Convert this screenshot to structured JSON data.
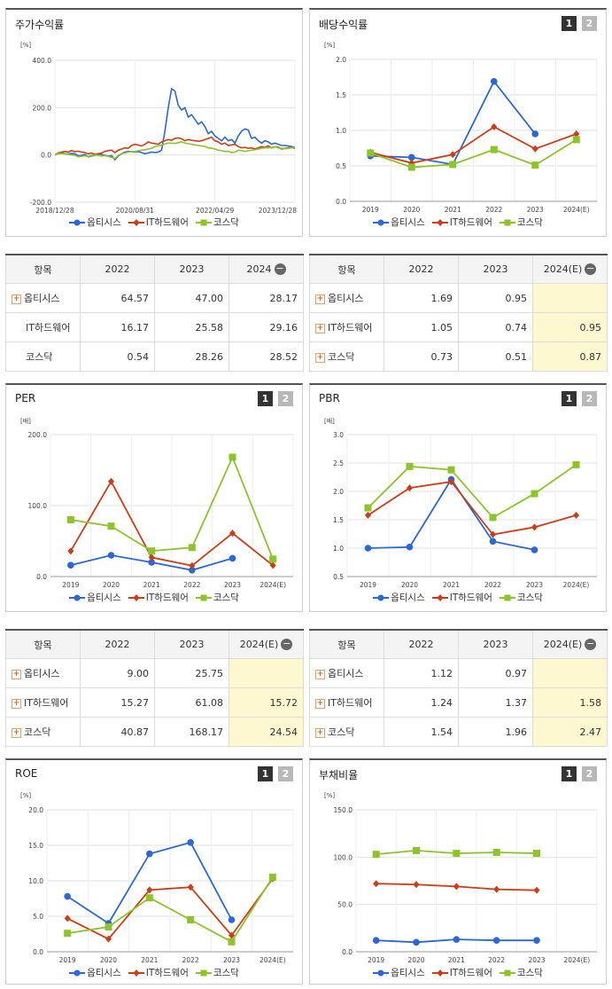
{
  "colors": {
    "opti": "#2b67d9",
    "ithw": "#cf3b14",
    "kosdaq": "#8cc42a"
  },
  "legend": [
    "옵티시스",
    "IT하드웨어",
    "코스닥"
  ],
  "panels": {
    "stock": {
      "title": "주가수익률",
      "unit": "[%]",
      "chart_data": {
        "type": "line",
        "x_ticks": [
          "2018/12/28",
          "2020/08/31",
          "2022/04/29",
          "2023/12/28"
        ],
        "y_ticks": [
          "400.0",
          "200.0",
          "0.0",
          "-200.0"
        ],
        "ylim": [
          -200,
          400
        ],
        "series": [
          {
            "name": "옵티시스",
            "values": [
              0,
              8,
              10,
              5,
              4,
              6,
              5,
              -4,
              -2,
              2,
              -8,
              -4,
              -2,
              5,
              2,
              -2,
              -5,
              -3,
              -20,
              -5,
              5,
              12,
              15,
              14,
              12,
              14,
              10,
              5,
              8,
              12,
              10,
              12,
              20,
              100,
              200,
              280,
              270,
              210,
              190,
              200,
              160,
              170,
              150,
              130,
              140,
              120,
              90,
              100,
              80,
              70,
              60,
              75,
              60,
              65,
              50,
              80,
              100,
              110,
              105,
              70,
              75,
              60,
              50,
              60,
              55,
              45,
              50,
              45,
              40,
              40,
              38,
              35,
              32
            ]
          },
          {
            "name": "IT하드웨어",
            "values": [
              0,
              8,
              12,
              15,
              12,
              18,
              14,
              16,
              12,
              10,
              5,
              8,
              2,
              5,
              8,
              15,
              18,
              20,
              10,
              20,
              25,
              30,
              28,
              40,
              45,
              42,
              38,
              45,
              55,
              50,
              48,
              45,
              55,
              60,
              65,
              62,
              70,
              72,
              68,
              60,
              65,
              62,
              60,
              58,
              60,
              65,
              70,
              75,
              60,
              55,
              45,
              50,
              40,
              42,
              45,
              35,
              30,
              32,
              28,
              30,
              25,
              30,
              35,
              32,
              38,
              30,
              35,
              33,
              25,
              28,
              30,
              32,
              28
            ]
          },
          {
            "name": "코스닥",
            "values": [
              0,
              5,
              6,
              4,
              2,
              0,
              -2,
              -8,
              -6,
              -4,
              -6,
              -2,
              0,
              -2,
              -5,
              -3,
              -6,
              -10,
              -15,
              -2,
              5,
              8,
              12,
              15,
              14,
              18,
              20,
              22,
              25,
              28,
              35,
              38,
              42,
              46,
              50,
              50,
              48,
              52,
              55,
              50,
              48,
              45,
              42,
              40,
              38,
              36,
              30,
              28,
              25,
              20,
              18,
              15,
              15,
              10,
              12,
              20,
              18,
              15,
              18,
              20,
              22,
              25,
              28,
              30,
              30,
              32,
              35,
              30,
              28,
              26,
              28,
              30,
              32
            ]
          }
        ]
      }
    },
    "dividend": {
      "title": "배당수익률",
      "unit": "[%]",
      "chart_data": {
        "type": "line",
        "categories": [
          "2019",
          "2020",
          "2021",
          "2022",
          "2023",
          "2024(E)"
        ],
        "y_ticks": [
          "2.0",
          "1.5",
          "1.0",
          "0.5",
          "0.0"
        ],
        "ylim": [
          0,
          2
        ],
        "series": [
          {
            "name": "옵티시스",
            "values": [
              0.64,
              0.62,
              0.52,
              1.69,
              0.95,
              null
            ]
          },
          {
            "name": "IT하드웨어",
            "values": [
              0.69,
              0.54,
              0.66,
              1.05,
              0.74,
              0.95
            ]
          },
          {
            "name": "코스닥",
            "values": [
              0.68,
              0.48,
              0.52,
              0.73,
              0.51,
              0.87
            ]
          }
        ]
      }
    },
    "per": {
      "title": "PER",
      "unit": "[배]",
      "chart_data": {
        "type": "line",
        "categories": [
          "2019",
          "2020",
          "2021",
          "2022",
          "2023",
          "2024(E)"
        ],
        "y_ticks": [
          "200.0",
          "100.0",
          "0.0"
        ],
        "ylim": [
          0,
          200
        ],
        "series": [
          {
            "name": "옵티시스",
            "values": [
              16,
              30,
              20,
              9.0,
              25.75,
              null
            ]
          },
          {
            "name": "IT하드웨어",
            "values": [
              36,
              134,
              27,
              15.27,
              61.08,
              15.72
            ]
          },
          {
            "name": "코스닥",
            "values": [
              80,
              71,
              36,
              40.87,
              168.17,
              24.54
            ]
          }
        ]
      }
    },
    "pbr": {
      "title": "PBR",
      "unit": "[배]",
      "chart_data": {
        "type": "line",
        "categories": [
          "2019",
          "2020",
          "2021",
          "2022",
          "2023",
          "2024(E)"
        ],
        "y_ticks": [
          "3.0",
          "2.5",
          "2.0",
          "1.5",
          "1.0",
          "0.5"
        ],
        "ylim": [
          0.5,
          3.0
        ],
        "series": [
          {
            "name": "옵티시스",
            "values": [
              1.0,
              1.02,
              2.21,
              1.12,
              0.97,
              null
            ]
          },
          {
            "name": "IT하드웨어",
            "values": [
              1.58,
              2.06,
              2.17,
              1.24,
              1.37,
              1.58
            ]
          },
          {
            "name": "코스닥",
            "values": [
              1.71,
              2.44,
              2.38,
              1.54,
              1.96,
              2.47
            ]
          }
        ]
      }
    },
    "roe": {
      "title": "ROE",
      "unit": "[%]",
      "chart_data": {
        "type": "line",
        "categories": [
          "2019",
          "2020",
          "2021",
          "2022",
          "2023",
          "2024(E)"
        ],
        "y_ticks": [
          "20.0",
          "15.0",
          "10.0",
          "5.0",
          "0.0"
        ],
        "ylim": [
          0,
          20
        ],
        "series": [
          {
            "name": "옵티시스",
            "values": [
              7.8,
              4.0,
              13.8,
              15.4,
              4.5,
              null
            ]
          },
          {
            "name": "IT하드웨어",
            "values": [
              4.7,
              1.8,
              8.7,
              9.1,
              2.3,
              10.3
            ]
          },
          {
            "name": "코스닥",
            "values": [
              2.6,
              3.5,
              7.6,
              4.5,
              1.4,
              10.5
            ]
          }
        ]
      }
    },
    "debt": {
      "title": "부채비율",
      "unit": "[%]",
      "chart_data": {
        "type": "line",
        "categories": [
          "2019",
          "2020",
          "2021",
          "2022",
          "2023",
          "2024(E)"
        ],
        "y_ticks": [
          "150.0",
          "100.0",
          "50.0",
          "0.0"
        ],
        "ylim": [
          0,
          150
        ],
        "series": [
          {
            "name": "옵티시스",
            "values": [
              12,
              10,
              13,
              12,
              12,
              null
            ]
          },
          {
            "name": "IT하드웨어",
            "values": [
              72,
              71,
              69,
              66,
              65,
              null
            ]
          },
          {
            "name": "코스닥",
            "values": [
              103,
              107,
              104,
              105,
              104,
              null
            ]
          }
        ]
      }
    }
  },
  "tables": {
    "stock": {
      "header": [
        "항목",
        "2022",
        "2023",
        "2024"
      ],
      "rows": [
        {
          "name": "옵티시스",
          "plus": true,
          "vals": [
            "64.57",
            "47.00",
            "28.17"
          ]
        },
        {
          "name": "IT하드웨어",
          "plus": false,
          "vals": [
            "16.17",
            "25.58",
            "29.16"
          ]
        },
        {
          "name": "코스닥",
          "plus": false,
          "vals": [
            "0.54",
            "28.26",
            "28.52"
          ]
        }
      ]
    },
    "dividend": {
      "header": [
        "항목",
        "2022",
        "2023",
        "2024(E)"
      ],
      "rows": [
        {
          "name": "옵티시스",
          "plus": true,
          "vals": [
            "1.69",
            "0.95",
            ""
          ]
        },
        {
          "name": "IT하드웨어",
          "plus": true,
          "vals": [
            "1.05",
            "0.74",
            "0.95"
          ]
        },
        {
          "name": "코스닥",
          "plus": true,
          "vals": [
            "0.73",
            "0.51",
            "0.87"
          ]
        }
      ]
    },
    "per": {
      "header": [
        "항목",
        "2022",
        "2023",
        "2024(E)"
      ],
      "rows": [
        {
          "name": "옵티시스",
          "plus": true,
          "vals": [
            "9.00",
            "25.75",
            ""
          ]
        },
        {
          "name": "IT하드웨어",
          "plus": true,
          "vals": [
            "15.27",
            "61.08",
            "15.72"
          ]
        },
        {
          "name": "코스닥",
          "plus": true,
          "vals": [
            "40.87",
            "168.17",
            "24.54"
          ]
        }
      ]
    },
    "pbr": {
      "header": [
        "항목",
        "2022",
        "2023",
        "2024(E)"
      ],
      "rows": [
        {
          "name": "옵티시스",
          "plus": true,
          "vals": [
            "1.12",
            "0.97",
            ""
          ]
        },
        {
          "name": "IT하드웨어",
          "plus": true,
          "vals": [
            "1.24",
            "1.37",
            "1.58"
          ]
        },
        {
          "name": "코스닥",
          "plus": true,
          "vals": [
            "1.54",
            "1.96",
            "2.47"
          ]
        }
      ]
    }
  },
  "buttons": {
    "one": "1",
    "two": "2",
    "minus": "−",
    "plus": "+"
  }
}
